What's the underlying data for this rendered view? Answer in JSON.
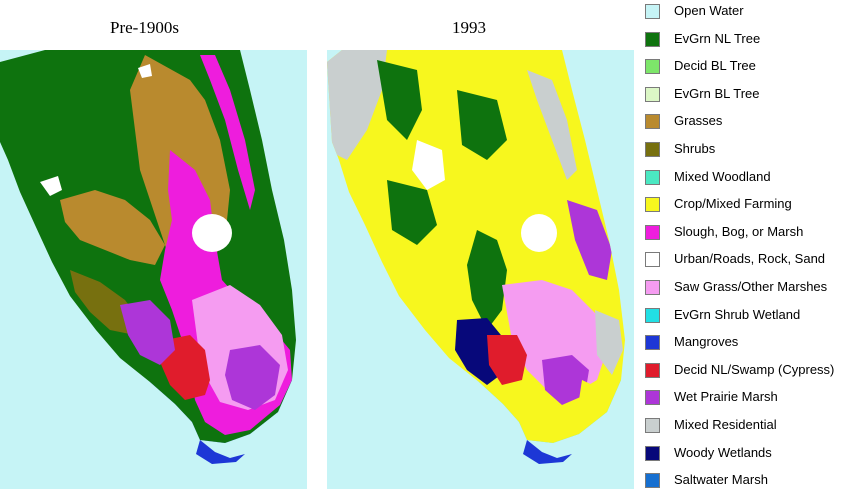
{
  "maps": {
    "left_title": "Pre-1900s",
    "right_title": "1993"
  },
  "legend": [
    {
      "label": "Open Water",
      "color": "#c6f4f6"
    },
    {
      "label": "EvGrn NL Tree",
      "color": "#0e730e"
    },
    {
      "label": "Decid BL Tree",
      "color": "#7de66a"
    },
    {
      "label": "EvGrn BL Tree",
      "color": "#dcf7c6"
    },
    {
      "label": "Grasses",
      "color": "#b98a2e"
    },
    {
      "label": "Shrubs",
      "color": "#77700f"
    },
    {
      "label": "Mixed Woodland",
      "color": "#4be8c2"
    },
    {
      "label": "Crop/Mixed Farming",
      "color": "#f7f71e"
    },
    {
      "label": "Slough, Bog, or Marsh",
      "color": "#ee1ddd"
    },
    {
      "label": "Urban/Roads, Rock, Sand",
      "color": "#ffffff"
    },
    {
      "label": "Saw Grass/Other Marshes",
      "color": "#f59cf1"
    },
    {
      "label": "EvGrn Shrub Wetland",
      "color": "#22dfe4"
    },
    {
      "label": "Mangroves",
      "color": "#1d37d6"
    },
    {
      "label": "Decid NL/Swamp (Cypress)",
      "color": "#e01c2c"
    },
    {
      "label": "Wet Prairie Marsh",
      "color": "#ad36d8"
    },
    {
      "label": "Mixed Residential",
      "color": "#c9cfcf"
    },
    {
      "label": "Woody Wetlands",
      "color": "#07087a"
    },
    {
      "label": "Saltwater Marsh",
      "color": "#166fd0"
    }
  ]
}
